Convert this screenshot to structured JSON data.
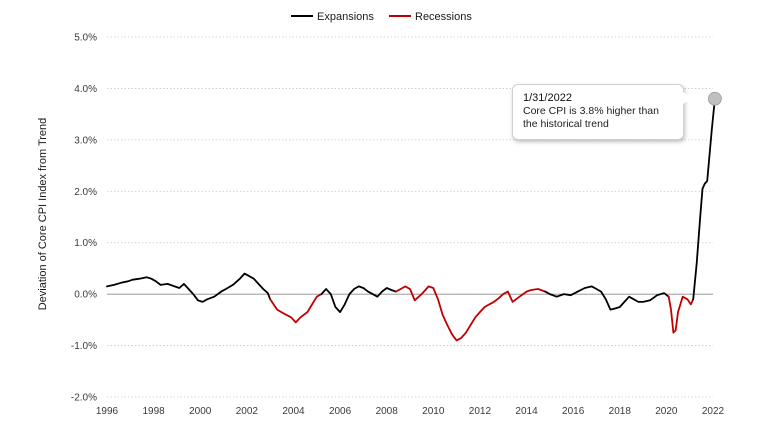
{
  "chart_data": {
    "type": "line",
    "title": "",
    "xlabel": "",
    "ylabel": "Deviation  of Core CPI Index from Trend",
    "xlim": [
      1996,
      2022
    ],
    "ylim": [
      -2.0,
      5.0
    ],
    "x_ticks": [
      "1996",
      "1998",
      "2000",
      "2002",
      "2004",
      "2006",
      "2008",
      "2010",
      "2012",
      "2014",
      "2016",
      "2018",
      "2020",
      "2022"
    ],
    "y_ticks": [
      "5.0%",
      "4.0%",
      "3.0%",
      "2.0%",
      "1.0%",
      "0.0%",
      "-1.0%",
      "-2.0%"
    ],
    "grid": "horizontal dotted",
    "legend_placement": "top-center",
    "legend": [
      {
        "name": "Expansions",
        "color": "#000000"
      },
      {
        "name": "Recessions",
        "color": "#c00000"
      }
    ],
    "series": [
      {
        "name": "Expansions",
        "color": "#000000",
        "points": [
          [
            1996.0,
            0.15
          ],
          [
            1996.3,
            0.18
          ],
          [
            1996.6,
            0.22
          ],
          [
            1996.9,
            0.25
          ],
          [
            1997.1,
            0.28
          ],
          [
            1997.4,
            0.3
          ],
          [
            1997.7,
            0.33
          ],
          [
            1997.9,
            0.3
          ],
          [
            1998.1,
            0.25
          ],
          [
            1998.3,
            0.18
          ],
          [
            1998.6,
            0.2
          ],
          [
            1998.9,
            0.15
          ],
          [
            1999.1,
            0.12
          ],
          [
            1999.3,
            0.2
          ],
          [
            1999.5,
            0.1
          ],
          [
            1999.7,
            0.0
          ],
          [
            1999.9,
            -0.12
          ],
          [
            2000.1,
            -0.15
          ],
          [
            2000.3,
            -0.1
          ],
          [
            2000.6,
            -0.05
          ],
          [
            2000.9,
            0.05
          ],
          [
            2001.1,
            0.1
          ],
          [
            2001.4,
            0.18
          ],
          [
            2001.7,
            0.3
          ],
          [
            2001.9,
            0.4
          ],
          [
            2002.1,
            0.35
          ],
          [
            2002.3,
            0.3
          ],
          [
            2002.5,
            0.2
          ],
          [
            2002.7,
            0.1
          ],
          [
            2002.9,
            0.02
          ],
          [
            2003.0,
            -0.1
          ]
        ]
      },
      {
        "name": "Recessions",
        "color": "#c00000",
        "points": [
          [
            2003.0,
            -0.1
          ],
          [
            2003.3,
            -0.3
          ],
          [
            2003.6,
            -0.38
          ],
          [
            2003.9,
            -0.45
          ],
          [
            2004.1,
            -0.55
          ],
          [
            2004.3,
            -0.45
          ],
          [
            2004.6,
            -0.35
          ],
          [
            2004.8,
            -0.2
          ],
          [
            2005.0,
            -0.05
          ],
          [
            2005.2,
            0.0
          ]
        ]
      },
      {
        "name": "Expansions",
        "color": "#000000",
        "points": [
          [
            2005.2,
            0.0
          ],
          [
            2005.4,
            0.1
          ],
          [
            2005.6,
            0.0
          ],
          [
            2005.8,
            -0.25
          ],
          [
            2006.0,
            -0.35
          ],
          [
            2006.2,
            -0.2
          ],
          [
            2006.4,
            0.0
          ],
          [
            2006.6,
            0.1
          ],
          [
            2006.8,
            0.15
          ],
          [
            2007.0,
            0.12
          ],
          [
            2007.2,
            0.05
          ],
          [
            2007.4,
            0.0
          ],
          [
            2007.6,
            -0.05
          ],
          [
            2007.8,
            0.05
          ],
          [
            2008.0,
            0.12
          ],
          [
            2008.2,
            0.08
          ],
          [
            2008.4,
            0.05
          ]
        ]
      },
      {
        "name": "Recessions",
        "color": "#c00000",
        "points": [
          [
            2008.4,
            0.05
          ],
          [
            2008.6,
            0.1
          ],
          [
            2008.8,
            0.15
          ],
          [
            2009.0,
            0.1
          ],
          [
            2009.2,
            -0.12
          ],
          [
            2009.5,
            0.0
          ],
          [
            2009.8,
            0.15
          ],
          [
            2010.0,
            0.12
          ],
          [
            2010.2,
            -0.1
          ],
          [
            2010.4,
            -0.4
          ],
          [
            2010.6,
            -0.6
          ],
          [
            2010.8,
            -0.78
          ],
          [
            2011.0,
            -0.9
          ],
          [
            2011.2,
            -0.85
          ],
          [
            2011.4,
            -0.75
          ],
          [
            2011.6,
            -0.6
          ],
          [
            2011.8,
            -0.45
          ],
          [
            2012.0,
            -0.35
          ],
          [
            2012.2,
            -0.25
          ],
          [
            2012.4,
            -0.2
          ],
          [
            2012.6,
            -0.15
          ],
          [
            2012.8,
            -0.08
          ],
          [
            2013.0,
            0.0
          ],
          [
            2013.2,
            0.05
          ],
          [
            2013.4,
            -0.15
          ],
          [
            2013.7,
            -0.05
          ],
          [
            2014.0,
            0.05
          ],
          [
            2014.2,
            0.08
          ],
          [
            2014.5,
            0.1
          ],
          [
            2014.8,
            0.05
          ]
        ]
      },
      {
        "name": "Expansions",
        "color": "#000000",
        "points": [
          [
            2014.8,
            0.05
          ],
          [
            2015.0,
            0.0
          ],
          [
            2015.3,
            -0.05
          ],
          [
            2015.6,
            0.0
          ],
          [
            2015.9,
            -0.02
          ],
          [
            2016.2,
            0.05
          ],
          [
            2016.5,
            0.12
          ],
          [
            2016.8,
            0.15
          ],
          [
            2017.0,
            0.1
          ],
          [
            2017.2,
            0.05
          ],
          [
            2017.4,
            -0.1
          ],
          [
            2017.6,
            -0.3
          ],
          [
            2017.8,
            -0.28
          ],
          [
            2018.0,
            -0.25
          ],
          [
            2018.2,
            -0.15
          ],
          [
            2018.4,
            -0.05
          ],
          [
            2018.6,
            -0.1
          ],
          [
            2018.8,
            -0.15
          ],
          [
            2019.0,
            -0.15
          ],
          [
            2019.3,
            -0.12
          ],
          [
            2019.6,
            -0.02
          ],
          [
            2019.9,
            0.02
          ],
          [
            2020.1,
            -0.05
          ]
        ]
      },
      {
        "name": "Recessions",
        "color": "#c00000",
        "points": [
          [
            2020.1,
            -0.05
          ],
          [
            2020.2,
            -0.3
          ],
          [
            2020.3,
            -0.75
          ],
          [
            2020.4,
            -0.7
          ],
          [
            2020.5,
            -0.35
          ],
          [
            2020.7,
            -0.05
          ],
          [
            2020.9,
            -0.1
          ],
          [
            2021.05,
            -0.2
          ],
          [
            2021.15,
            -0.1
          ]
        ]
      },
      {
        "name": "Expansions",
        "color": "#000000",
        "points": [
          [
            2021.15,
            -0.1
          ],
          [
            2021.3,
            0.6
          ],
          [
            2021.45,
            1.5
          ],
          [
            2021.55,
            2.05
          ],
          [
            2021.65,
            2.15
          ],
          [
            2021.75,
            2.2
          ],
          [
            2021.85,
            2.7
          ],
          [
            2021.95,
            3.2
          ],
          [
            2022.08,
            3.8
          ]
        ]
      }
    ],
    "annotation": {
      "x": 2022.08,
      "y": 3.8,
      "date": "1/31/2022",
      "text_line1": "Core CPI is 3.8% higher than",
      "text_line2": "the historical trend"
    }
  }
}
